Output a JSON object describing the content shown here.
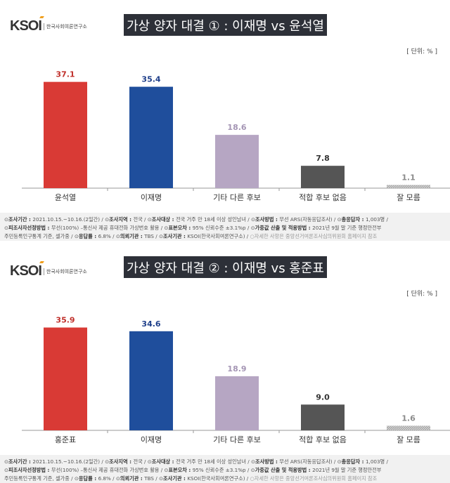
{
  "logo": {
    "mark": "KSOI",
    "sub": "한국사회여론연구소"
  },
  "unit_label": "[ 단위: % ]",
  "colors": [
    "#d93a35",
    "#1f4e9c",
    "#b6a6c3",
    "#555555",
    "#c4c4c4"
  ],
  "label_colors": [
    "#c0302b",
    "#1f3f8a",
    "#a495b4",
    "#333333",
    "#8a8a8a"
  ],
  "footnote": {
    "line1": [
      [
        "조사기간",
        "2021.10.15.~10.16.(2일간)"
      ],
      [
        "조사지역",
        "전국"
      ],
      [
        "조사대상",
        "전국 거주 만 18세 이상 성인남녀"
      ],
      [
        "조사방법",
        "무선 ARS(자동응답조사)"
      ],
      [
        "총응답자",
        "1,003명"
      ]
    ],
    "line2": [
      [
        "피조사자선정방법",
        "무선(100%) –통신사 제공 휴대전화 가상번호 활용"
      ],
      [
        "표본오차",
        "95% 신뢰수준 ±3.1%p"
      ],
      [
        "가중값 산출 및 적용방법",
        "2021년 9월 말 기준 행정안전부"
      ]
    ],
    "line3_prefix": "주민등록인구통계 기준, 셀가중",
    "line3": [
      [
        "응답률",
        "6.8%"
      ],
      [
        "의뢰기관",
        "TBS"
      ],
      [
        "조사기관",
        "KSOI(한국사회여론연구소)"
      ]
    ],
    "note": "자세한 사항은 중앙선거여론조사심의위원회 홈페이지 참조"
  },
  "chart_data": [
    {
      "type": "bar",
      "title": "가상  양자 대결 ① : 이재명 vs 윤석열",
      "categories": [
        "윤석열",
        "이재명",
        "기타 다른 후보",
        "적합 후보 없음",
        "잘 모름"
      ],
      "values": [
        37.1,
        35.4,
        18.6,
        7.8,
        1.1
      ],
      "ylim": [
        0,
        40
      ],
      "grid": false
    },
    {
      "type": "bar",
      "title": "가상  양자 대결 ② : 이재명 vs 홍준표",
      "categories": [
        "홍준표",
        "이재명",
        "기타 다른 후보",
        "적합 후보 없음",
        "잘 모름"
      ],
      "values": [
        35.9,
        34.6,
        18.9,
        9.0,
        1.6
      ],
      "ylim": [
        0,
        40
      ],
      "grid": false
    }
  ]
}
